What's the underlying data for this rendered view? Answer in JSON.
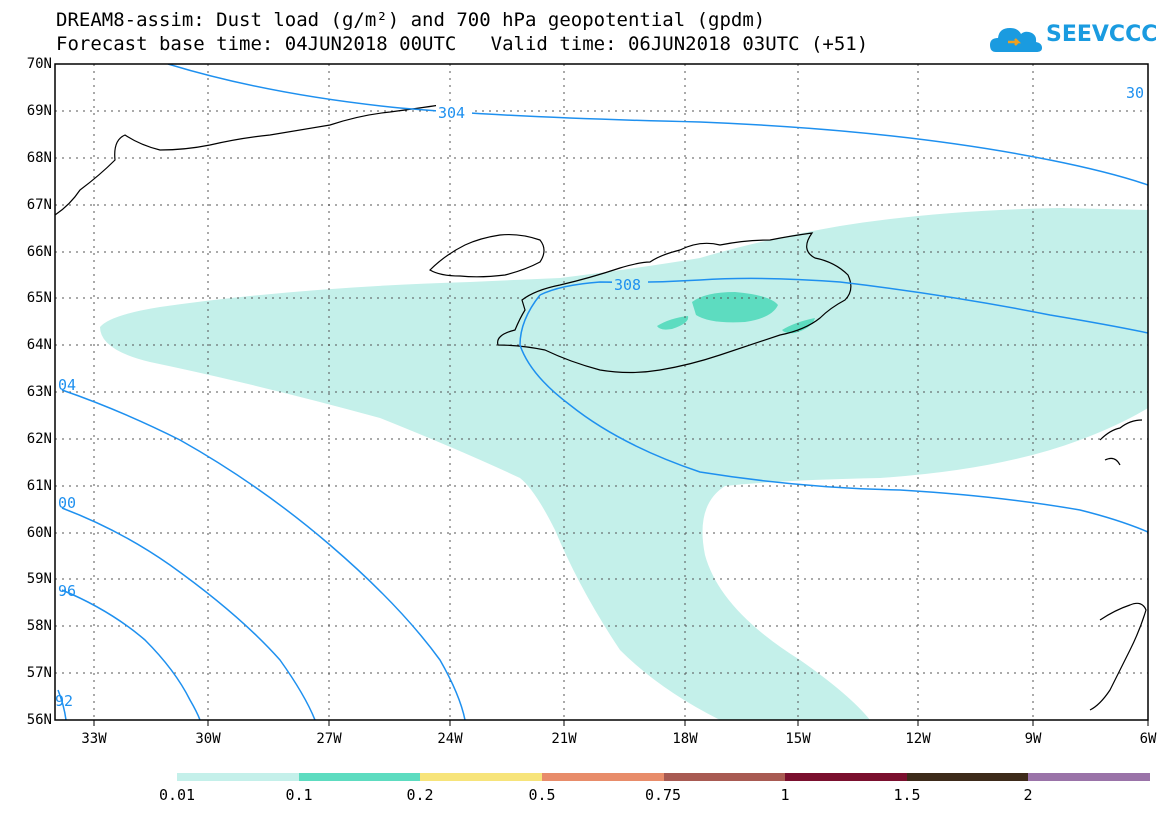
{
  "header": {
    "title_line1": "DREAM8-assim: Dust load (g/m²) and 700 hPa geopotential (gpdm)",
    "title_line2": "Forecast base time: 04JUN2018 00UTC   Valid time: 06JUN2018 03UTC (+51)",
    "logo_text": "SEEVCCC",
    "logo_icon": "cloud-icon"
  },
  "map": {
    "lat_labels": [
      "70N",
      "69N",
      "68N",
      "67N",
      "66N",
      "65N",
      "64N",
      "63N",
      "62N",
      "61N",
      "60N",
      "59N",
      "58N",
      "57N",
      "56N"
    ],
    "lon_labels": [
      "33W",
      "30W",
      "27W",
      "24W",
      "21W",
      "18W",
      "15W",
      "12W",
      "9W",
      "6W"
    ],
    "contour_labels": {
      "c304": "304",
      "c308": "308",
      "c304_left": "04",
      "c300_left": "00",
      "c296_left": "96",
      "c292_left": "92",
      "c300_top": "30"
    },
    "colors": {
      "contour": "#1e90ef",
      "dust_light": "#c4f0ea",
      "dust_medium": "#5ddcc0",
      "coast": "#000000"
    }
  },
  "colorbar": {
    "colors": [
      "#c4f0ea",
      "#5ddcc0",
      "#f7e47a",
      "#e88c6a",
      "#a85a52",
      "#7a0f2e",
      "#3d2a1a",
      "#9a73a8"
    ],
    "labels": [
      "0.01",
      "0.1",
      "0.2",
      "0.5",
      "0.75",
      "1",
      "1.5",
      "2"
    ]
  }
}
